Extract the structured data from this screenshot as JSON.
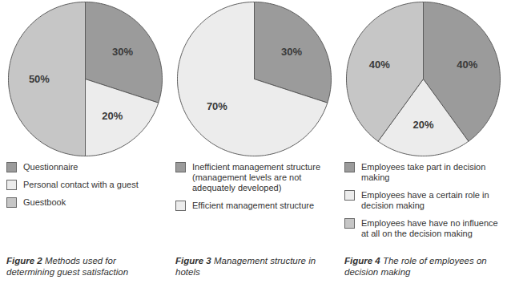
{
  "chart_data": [
    {
      "type": "pie",
      "title": "Figure 2 Methods used for determining guest satisfaction",
      "categories": [
        "Questionnaire",
        "Personal contact with a guest",
        "Guestbook"
      ],
      "values": [
        30,
        20,
        50
      ],
      "value_labels": [
        "30%",
        "20%",
        "50%"
      ],
      "colors": [
        "#9b9b9b",
        "#ececec",
        "#c6c6c6"
      ],
      "data_labels": true,
      "legend": "bottom"
    },
    {
      "type": "pie",
      "title": "Figure 3 Management structure in hotels",
      "categories": [
        "Inefficient management structure (management levels are not adequately developed)",
        "Efficient management structure"
      ],
      "values": [
        30,
        70
      ],
      "value_labels": [
        "30%",
        "70%"
      ],
      "colors": [
        "#9b9b9b",
        "#ececec"
      ],
      "data_labels": true,
      "legend": "bottom"
    },
    {
      "type": "pie",
      "title": "Figure 4 The role of employees on decision making",
      "categories": [
        "Employees take part in decision making",
        "Employees have a certain role in decision making",
        "Employees have have no influence at all on the decision making"
      ],
      "values": [
        40,
        20,
        40
      ],
      "value_labels": [
        "40%",
        "20%",
        "40%"
      ],
      "colors": [
        "#9b9b9b",
        "#ececec",
        "#c6c6c6"
      ],
      "data_labels": true,
      "legend": "bottom"
    }
  ]
}
